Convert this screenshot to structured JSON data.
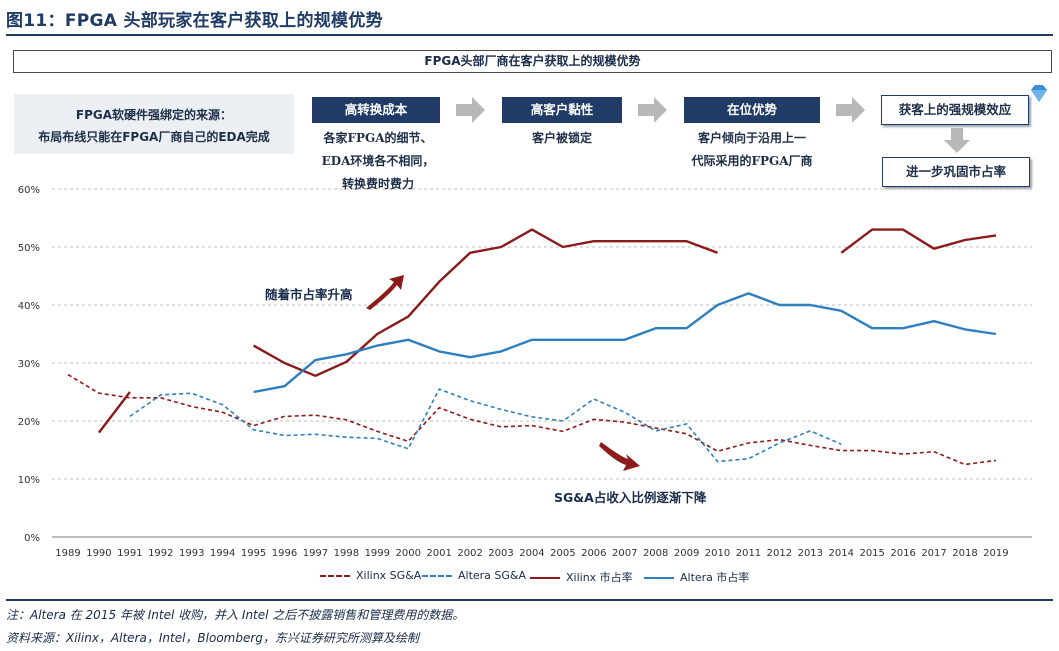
{
  "figure_title": "图11：FPGA 头部玩家在客户获取上的规模优势",
  "banner": "FPGA头部厂商在客户获取上的规模优势",
  "note": {
    "line1": "FPGA软硬件强绑定的来源：",
    "line2": "布局布线只能在FPGA厂商自己的EDA完成"
  },
  "steps": [
    {
      "label": "高转换成本",
      "desc": [
        "各家FPGA的细节、",
        "EDA环境各不相同，",
        "转换费时费力"
      ]
    },
    {
      "label": "高客户黏性",
      "desc": [
        "客户被锁定"
      ]
    },
    {
      "label": "在位优势",
      "desc": [
        "客户倾向于沿用上一",
        "代际采用的FPGA厂商"
      ]
    }
  ],
  "outcome": {
    "top": "获客上的强规模效应",
    "bottom": "进一步巩固市占率"
  },
  "icons": {
    "arrow": "right-arrow-icon",
    "down": "down-arrow-icon",
    "diamond": "diamond-icon"
  },
  "annotations": {
    "rise": "随着市占率升高",
    "fall": "SG&A占收入比例逐渐下降"
  },
  "chart_data": {
    "type": "line",
    "x": [
      "1989",
      "1990",
      "1991",
      "1992",
      "1993",
      "1994",
      "1995",
      "1996",
      "1997",
      "1998",
      "1999",
      "2000",
      "2001",
      "2002",
      "2003",
      "2004",
      "2005",
      "2006",
      "2007",
      "2008",
      "2009",
      "2010",
      "2011",
      "2012",
      "2013",
      "2014",
      "2015",
      "2016",
      "2017",
      "2018",
      "2019"
    ],
    "ylim": [
      0,
      60
    ],
    "yticks": [
      "0%",
      "10%",
      "20%",
      "30%",
      "40%",
      "50%",
      "60%"
    ],
    "grid": true,
    "series": [
      {
        "name": "Xilinx SG&A",
        "color": "#8b1a1a",
        "dashed": true,
        "values": [
          28,
          24.8,
          24,
          24,
          22.5,
          21.5,
          19.2,
          20.8,
          21,
          20.2,
          18.2,
          16.5,
          22.3,
          20.3,
          19,
          19.2,
          18.2,
          20.3,
          19.8,
          18.8,
          17.8,
          14.8,
          16.2,
          16.8,
          15.8,
          14.9,
          14.9,
          14.3,
          14.7,
          12.5,
          13.2
        ]
      },
      {
        "name": "Altera  SG&A",
        "color": "#2e7fc0",
        "dashed": true,
        "values": [
          null,
          null,
          20.8,
          24.5,
          24.8,
          22.8,
          18.5,
          17.5,
          17.7,
          17.2,
          17,
          15.2,
          25.5,
          23.5,
          22,
          20.7,
          20,
          23.8,
          21.5,
          18.3,
          19.5,
          13,
          13.5,
          16.2,
          18.3,
          16,
          null,
          null,
          null,
          null,
          null
        ]
      },
      {
        "name": "Xilinx 市占率",
        "color": "#8b1a1a",
        "dashed": false,
        "values": [
          null,
          18,
          25,
          null,
          null,
          null,
          33,
          30,
          27.8,
          30.2,
          35,
          38,
          44,
          49,
          50,
          53,
          50,
          51,
          51,
          51,
          51,
          49,
          null,
          null,
          null,
          49,
          53,
          53,
          49.7,
          51.2,
          52
        ]
      },
      {
        "name": "Altera  市占率",
        "color": "#2e7fc0",
        "dashed": false,
        "values": [
          null,
          null,
          null,
          null,
          null,
          null,
          25,
          26,
          30.5,
          31.5,
          33,
          34,
          32,
          31,
          32,
          34,
          34,
          34,
          34,
          36,
          36,
          40,
          42,
          40,
          40,
          39,
          36,
          36,
          37.2,
          35.8,
          35
        ]
      }
    ]
  },
  "footnote": "注：Altera 在 2015 年被 Intel 收购，并入 Intel 之后不披露销售和管理费用的数据。",
  "source": "资料来源：Xilinx，Altera，Intel，Bloomberg，东兴证券研究所测算及绘制"
}
